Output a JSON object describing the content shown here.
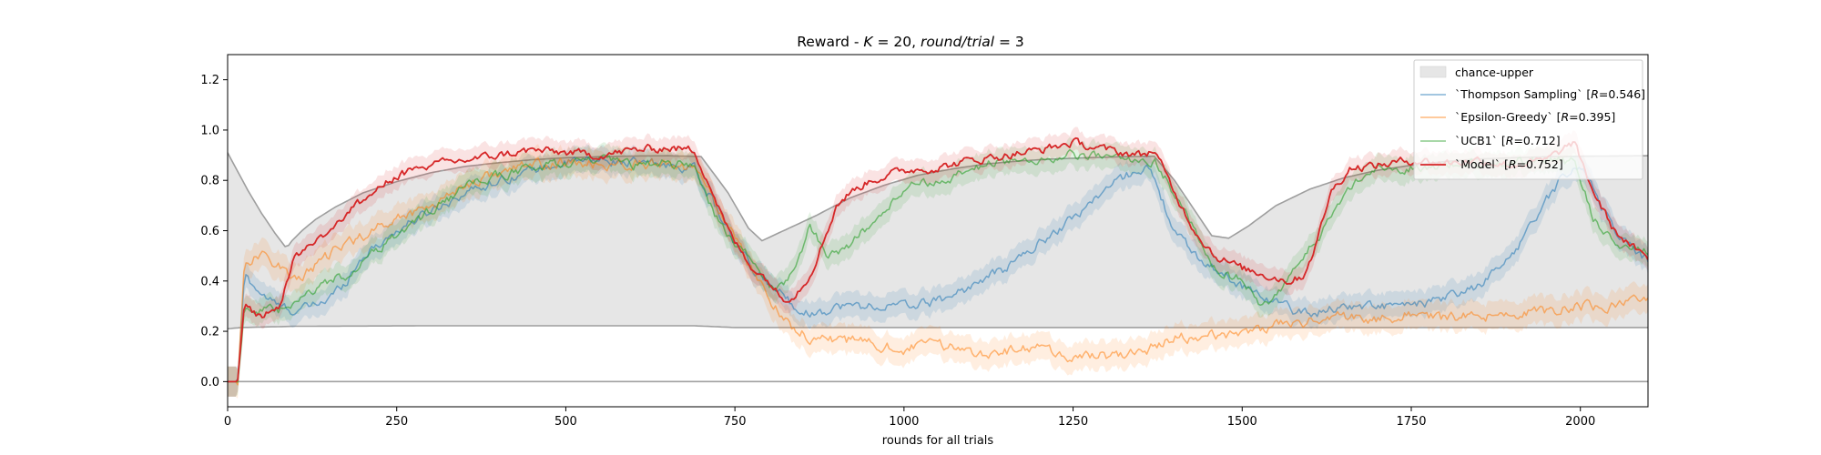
{
  "chart_data": {
    "type": "line",
    "title": "Reward - K = 20, round/trial = 3",
    "title_parts": {
      "prefix": "Reward - ",
      "K": "K",
      "eq1": " = 20, ",
      "rt": "round/trial",
      "eq2": " = 3"
    },
    "xlabel": "rounds for all trials",
    "ylabel": "",
    "xlim": [
      0,
      2100
    ],
    "ylim": [
      -0.1,
      1.3
    ],
    "x_ticks": [
      0,
      250,
      500,
      750,
      1000,
      1250,
      1500,
      1750,
      2000
    ],
    "x_tick_labels": [
      "0",
      "250",
      "500",
      "750",
      "1000",
      "1250",
      "1500",
      "1750",
      "2000"
    ],
    "y_ticks": [
      0.0,
      0.2,
      0.4,
      0.6,
      0.8,
      1.0,
      1.2
    ],
    "y_tick_labels": [
      "0.0",
      "0.2",
      "0.4",
      "0.6",
      "0.8",
      "1.0",
      "1.2"
    ],
    "grid": false,
    "legend_position": "top-right",
    "reference_lines": [
      {
        "y": 0.0,
        "color": "#a0a0a0"
      }
    ],
    "band": {
      "name": "chance-upper",
      "color": "#e6e6e6",
      "lower": {
        "x": [
          0,
          20,
          100,
          300,
          500,
          690,
          750,
          900,
          1100,
          1300,
          1500,
          1700,
          1900,
          2100
        ],
        "y": [
          0.21,
          0.215,
          0.22,
          0.222,
          0.222,
          0.222,
          0.215,
          0.215,
          0.215,
          0.215,
          0.215,
          0.215,
          0.215,
          0.215
        ]
      },
      "upper": {
        "x": [
          0,
          10,
          30,
          50,
          70,
          87,
          95,
          110,
          130,
          160,
          200,
          250,
          300,
          350,
          400,
          450,
          500,
          550,
          600,
          650,
          700,
          740,
          770,
          790,
          830,
          870,
          920,
          970,
          1020,
          1070,
          1120,
          1170,
          1220,
          1270,
          1320,
          1370,
          1400,
          1430,
          1455,
          1480,
          1510,
          1550,
          1600,
          1650,
          1700,
          1750,
          1800,
          1850,
          1900,
          1950,
          2000,
          2050,
          2100
        ],
        "y": [
          0.91,
          0.86,
          0.76,
          0.67,
          0.59,
          0.53,
          0.56,
          0.6,
          0.645,
          0.695,
          0.75,
          0.795,
          0.83,
          0.855,
          0.87,
          0.882,
          0.89,
          0.894,
          0.897,
          0.898,
          0.895,
          0.75,
          0.61,
          0.56,
          0.61,
          0.66,
          0.73,
          0.78,
          0.82,
          0.845,
          0.865,
          0.877,
          0.885,
          0.89,
          0.894,
          0.896,
          0.8,
          0.68,
          0.58,
          0.57,
          0.62,
          0.7,
          0.765,
          0.81,
          0.84,
          0.86,
          0.875,
          0.885,
          0.89,
          0.894,
          0.896,
          0.897,
          0.898
        ]
      }
    },
    "series": [
      {
        "name": "`Thompson Sampling` [R=0.546]",
        "legend_parts": {
          "prefix": "`Thompson Sampling` [",
          "R": "R",
          "value": "=0.546]"
        },
        "color": "#1f77b4",
        "x": [
          0,
          15,
          25,
          50,
          75,
          100,
          125,
          150,
          175,
          200,
          250,
          300,
          350,
          400,
          450,
          500,
          550,
          600,
          650,
          690,
          720,
          750,
          780,
          810,
          840,
          860,
          880,
          900,
          950,
          1000,
          1050,
          1100,
          1150,
          1200,
          1250,
          1300,
          1330,
          1360,
          1400,
          1430,
          1460,
          1500,
          1540,
          1580,
          1600,
          1650,
          1700,
          1750,
          1800,
          1850,
          1880,
          1910,
          1940,
          1970,
          2000,
          2050,
          2100
        ],
        "y": [
          0.0,
          0.0,
          0.42,
          0.35,
          0.3,
          0.28,
          0.3,
          0.33,
          0.4,
          0.5,
          0.6,
          0.68,
          0.75,
          0.8,
          0.84,
          0.87,
          0.88,
          0.87,
          0.86,
          0.85,
          0.7,
          0.55,
          0.43,
          0.37,
          0.3,
          0.27,
          0.28,
          0.3,
          0.3,
          0.3,
          0.32,
          0.38,
          0.45,
          0.55,
          0.65,
          0.77,
          0.82,
          0.86,
          0.6,
          0.5,
          0.45,
          0.38,
          0.33,
          0.28,
          0.27,
          0.3,
          0.3,
          0.3,
          0.33,
          0.38,
          0.45,
          0.55,
          0.68,
          0.8,
          0.87,
          0.6,
          0.48
        ]
      },
      {
        "name": "`Epsilon-Greedy` [R=0.395]",
        "legend_parts": {
          "prefix": "`Epsilon-Greedy` [",
          "R": "R",
          "value": "=0.395]"
        },
        "color": "#ff7f0e",
        "x": [
          0,
          15,
          25,
          50,
          75,
          100,
          125,
          150,
          175,
          200,
          250,
          300,
          350,
          400,
          450,
          500,
          550,
          600,
          650,
          690,
          720,
          750,
          780,
          810,
          840,
          870,
          900,
          950,
          1000,
          1050,
          1100,
          1150,
          1200,
          1250,
          1300,
          1350,
          1400,
          1450,
          1500,
          1550,
          1600,
          1650,
          1700,
          1750,
          1800,
          1850,
          1900,
          1950,
          2000,
          2050,
          2100
        ],
        "y": [
          0.0,
          0.0,
          0.48,
          0.5,
          0.47,
          0.4,
          0.45,
          0.5,
          0.55,
          0.58,
          0.65,
          0.7,
          0.78,
          0.83,
          0.86,
          0.87,
          0.86,
          0.87,
          0.86,
          0.84,
          0.72,
          0.58,
          0.42,
          0.3,
          0.2,
          0.17,
          0.17,
          0.15,
          0.13,
          0.15,
          0.12,
          0.12,
          0.13,
          0.1,
          0.1,
          0.12,
          0.17,
          0.18,
          0.2,
          0.22,
          0.24,
          0.26,
          0.25,
          0.27,
          0.25,
          0.26,
          0.27,
          0.28,
          0.3,
          0.3,
          0.33
        ]
      },
      {
        "name": "`UCB1` [R=0.712]",
        "legend_parts": {
          "prefix": "`UCB1` [",
          "R": "R",
          "value": "=0.712]"
        },
        "color": "#2ca02c",
        "x": [
          0,
          15,
          25,
          50,
          75,
          100,
          125,
          150,
          175,
          200,
          250,
          300,
          350,
          400,
          450,
          500,
          550,
          600,
          650,
          690,
          720,
          750,
          780,
          810,
          840,
          860,
          890,
          920,
          950,
          980,
          1000,
          1030,
          1060,
          1100,
          1150,
          1200,
          1250,
          1300,
          1340,
          1370,
          1400,
          1430,
          1460,
          1500,
          1530,
          1560,
          1590,
          1620,
          1650,
          1700,
          1750,
          1800,
          1850,
          1900,
          1950,
          1990,
          2020,
          2050,
          2100
        ],
        "y": [
          0.0,
          0.0,
          0.3,
          0.28,
          0.28,
          0.3,
          0.36,
          0.4,
          0.42,
          0.48,
          0.58,
          0.68,
          0.77,
          0.82,
          0.85,
          0.87,
          0.88,
          0.86,
          0.87,
          0.86,
          0.66,
          0.55,
          0.47,
          0.35,
          0.45,
          0.62,
          0.5,
          0.55,
          0.62,
          0.7,
          0.77,
          0.8,
          0.78,
          0.85,
          0.88,
          0.88,
          0.9,
          0.89,
          0.88,
          0.88,
          0.75,
          0.6,
          0.45,
          0.4,
          0.3,
          0.36,
          0.5,
          0.6,
          0.75,
          0.85,
          0.85,
          0.86,
          0.87,
          0.87,
          0.88,
          0.87,
          0.65,
          0.55,
          0.52
        ]
      },
      {
        "name": "`Model` [R=0.752]",
        "legend_parts": {
          "prefix": "`Model` [",
          "R": "R",
          "value": "=0.752]"
        },
        "color": "#d62728",
        "x": [
          0,
          15,
          25,
          50,
          75,
          100,
          125,
          150,
          175,
          200,
          250,
          300,
          350,
          400,
          450,
          500,
          550,
          600,
          650,
          690,
          710,
          740,
          770,
          800,
          820,
          840,
          860,
          880,
          900,
          920,
          950,
          1000,
          1050,
          1100,
          1150,
          1200,
          1250,
          1300,
          1350,
          1370,
          1400,
          1430,
          1460,
          1500,
          1540,
          1570,
          1590,
          1610,
          1630,
          1660,
          1700,
          1750,
          1800,
          1850,
          1900,
          1950,
          1990,
          2020,
          2050,
          2100
        ],
        "y": [
          0.0,
          0.0,
          0.3,
          0.26,
          0.3,
          0.5,
          0.55,
          0.6,
          0.67,
          0.72,
          0.82,
          0.86,
          0.88,
          0.9,
          0.92,
          0.91,
          0.9,
          0.92,
          0.93,
          0.92,
          0.8,
          0.6,
          0.47,
          0.4,
          0.33,
          0.35,
          0.42,
          0.55,
          0.7,
          0.75,
          0.8,
          0.84,
          0.85,
          0.88,
          0.9,
          0.92,
          0.95,
          0.92,
          0.9,
          0.92,
          0.75,
          0.6,
          0.5,
          0.45,
          0.42,
          0.4,
          0.42,
          0.55,
          0.75,
          0.85,
          0.86,
          0.88,
          0.87,
          0.88,
          0.86,
          0.88,
          0.95,
          0.75,
          0.6,
          0.48
        ]
      }
    ]
  }
}
